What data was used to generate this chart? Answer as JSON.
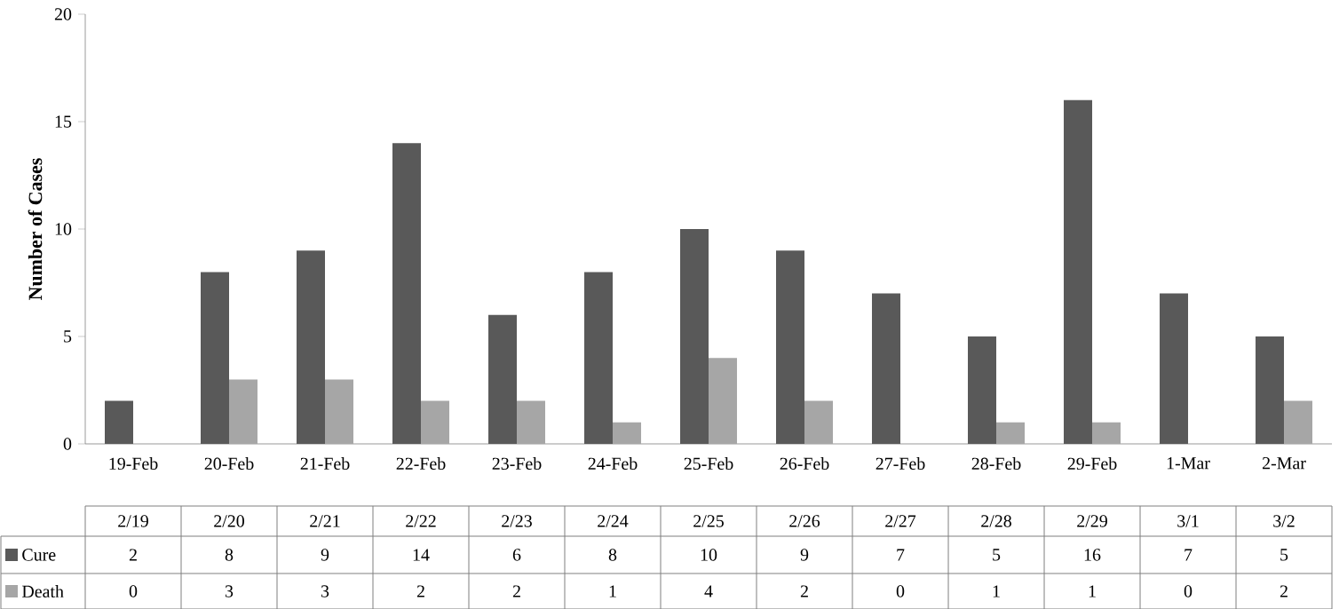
{
  "chart_data": {
    "type": "bar",
    "ylabel": "Number of Cases",
    "categories": [
      "19-Feb",
      "20-Feb",
      "21-Feb",
      "22-Feb",
      "23-Feb",
      "24-Feb",
      "25-Feb",
      "26-Feb",
      "27-Feb",
      "28-Feb",
      "29-Feb",
      "1-Mar",
      "2-Mar"
    ],
    "series": [
      {
        "name": "Cure",
        "color": "#595959",
        "values": [
          2,
          8,
          9,
          14,
          6,
          8,
          10,
          9,
          7,
          5,
          16,
          7,
          5
        ]
      },
      {
        "name": "Death",
        "color": "#a6a6a6",
        "values": [
          0,
          3,
          3,
          2,
          2,
          1,
          4,
          2,
          0,
          1,
          1,
          0,
          2
        ]
      }
    ],
    "annotations": [
      "2/19",
      "2/20",
      "2/21",
      "2/22",
      "2/23",
      "2/24",
      "2/25",
      "2/26",
      "2/27",
      "2/28",
      "2/29",
      "3/1",
      "3/2"
    ],
    "ylim": [
      0,
      20
    ],
    "yticks": [
      0,
      5,
      10,
      15,
      20
    ],
    "data_labels": true,
    "legend": "bottom"
  }
}
